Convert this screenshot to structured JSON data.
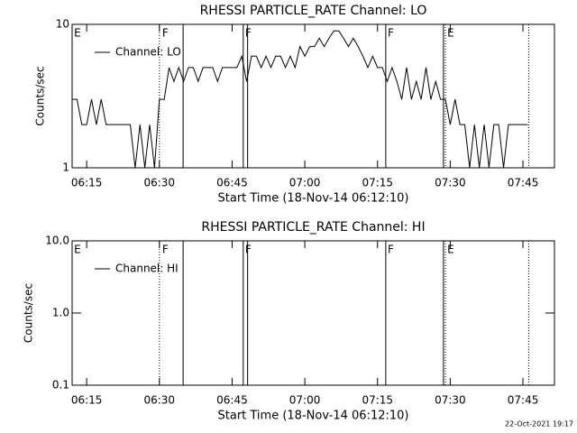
{
  "charts": [
    {
      "chart_data": {
        "type": "line",
        "title": "RHESSI PARTICLE_RATE Channel: LO",
        "xlabel": "Start Time (18-Nov-14 06:12:10)",
        "ylabel": "Counts/sec",
        "log_y": true,
        "xlim": [
          372,
          471.5
        ],
        "ylim": [
          1,
          10
        ],
        "xticks": [
          {
            "value": 375,
            "label": "06:15"
          },
          {
            "value": 390,
            "label": "06:30"
          },
          {
            "value": 405,
            "label": "06:45"
          },
          {
            "value": 420,
            "label": "07:00"
          },
          {
            "value": 435,
            "label": "07:15"
          },
          {
            "value": 450,
            "label": "07:30"
          },
          {
            "value": 465,
            "label": "07:45"
          }
        ],
        "yticks": [
          1,
          10
        ],
        "series": [
          {
            "name": "Channel: LO",
            "color": "#000000",
            "x": [
              372,
              373,
              374,
              375,
              376,
              377,
              378,
              379,
              380,
              381,
              382,
              383,
              384,
              385,
              386,
              387,
              388,
              389,
              390,
              391,
              392,
              393,
              394,
              395,
              396,
              397,
              398,
              399,
              400,
              401,
              402,
              403,
              404,
              405,
              406,
              407,
              408,
              409,
              410,
              411,
              412,
              413,
              414,
              415,
              416,
              417,
              418,
              419,
              420,
              421,
              422,
              423,
              424,
              425,
              426,
              427,
              428,
              429,
              430,
              431,
              432,
              433,
              434,
              435,
              436,
              437,
              438,
              439,
              440,
              441,
              442,
              443,
              444,
              445,
              446,
              447,
              448,
              449,
              450,
              451,
              452,
              453,
              454,
              455,
              456,
              457,
              458,
              459,
              460,
              461,
              462,
              463,
              464,
              465,
              466
            ],
            "values": [
              3,
              3,
              2,
              2,
              3,
              2,
              3,
              2,
              2,
              2,
              2,
              2,
              2,
              1,
              2,
              1,
              2,
              1,
              3,
              3,
              5,
              4,
              5,
              4,
              5,
              5,
              4,
              5,
              5,
              5,
              4,
              5,
              5,
              5,
              5,
              6,
              4,
              6,
              6,
              5,
              6,
              5,
              6,
              6,
              5,
              6,
              5,
              7,
              6,
              7,
              7,
              8,
              7,
              8,
              9,
              9,
              8,
              7,
              8,
              7,
              6,
              5,
              6,
              5,
              5,
              4,
              5,
              4,
              3,
              5,
              3,
              4,
              3,
              5,
              3,
              4,
              3,
              3,
              2,
              3,
              2,
              2,
              1,
              2,
              1,
              2,
              1,
              2,
              2,
              1,
              2,
              2,
              2,
              2,
              2
            ]
          }
        ],
        "markers": [
          {
            "x": 390.0,
            "style": "dotted"
          },
          {
            "x": 394.9,
            "style": "solid"
          },
          {
            "x": 407.3,
            "style": "solid"
          },
          {
            "x": 408.2,
            "style": "solid"
          },
          {
            "x": 436.7,
            "style": "solid"
          },
          {
            "x": 448.6,
            "style": "solid"
          },
          {
            "x": 449.0,
            "style": "dotted"
          },
          {
            "x": 466.2,
            "style": "dotted"
          }
        ],
        "flags": [
          {
            "text": "E",
            "x": 372.2
          },
          {
            "text": "F",
            "x": 390.4
          },
          {
            "text": "F",
            "x": 407.5
          },
          {
            "text": "F",
            "x": 436.9
          },
          {
            "text": "E",
            "x": 449.2
          }
        ]
      }
    },
    {
      "chart_data": {
        "type": "line",
        "title": "RHESSI PARTICLE_RATE Channel: HI",
        "xlabel": "Start Time (18-Nov-14 06:12:10)",
        "ylabel": "Counts/sec",
        "log_y": true,
        "xlim": [
          372,
          471.5
        ],
        "ylim": [
          0.1,
          10
        ],
        "xticks": [
          {
            "value": 375,
            "label": "06:15"
          },
          {
            "value": 390,
            "label": "06:30"
          },
          {
            "value": 405,
            "label": "06:45"
          },
          {
            "value": 420,
            "label": "07:00"
          },
          {
            "value": 435,
            "label": "07:15"
          },
          {
            "value": 450,
            "label": "07:30"
          },
          {
            "value": 465,
            "label": "07:45"
          }
        ],
        "yticks": [
          0.1,
          {
            "value": 1,
            "label": "1.0"
          },
          {
            "value": 10,
            "label": "10.0"
          }
        ],
        "series": [
          {
            "name": "Channel: HI",
            "color": "#000000",
            "x": [],
            "values": []
          }
        ],
        "markers": [
          {
            "x": 390.0,
            "style": "dotted"
          },
          {
            "x": 394.9,
            "style": "solid"
          },
          {
            "x": 407.3,
            "style": "solid"
          },
          {
            "x": 408.2,
            "style": "solid"
          },
          {
            "x": 436.7,
            "style": "solid"
          },
          {
            "x": 448.6,
            "style": "solid"
          },
          {
            "x": 449.0,
            "style": "dotted"
          },
          {
            "x": 466.2,
            "style": "dotted"
          }
        ],
        "flags": [
          {
            "text": "E",
            "x": 372.2
          },
          {
            "text": "F",
            "x": 390.4
          },
          {
            "text": "F",
            "x": 407.5
          },
          {
            "text": "F",
            "x": 436.9
          },
          {
            "text": "E",
            "x": 449.2
          }
        ]
      }
    }
  ],
  "footer": "22-Oct-2021 19:17"
}
